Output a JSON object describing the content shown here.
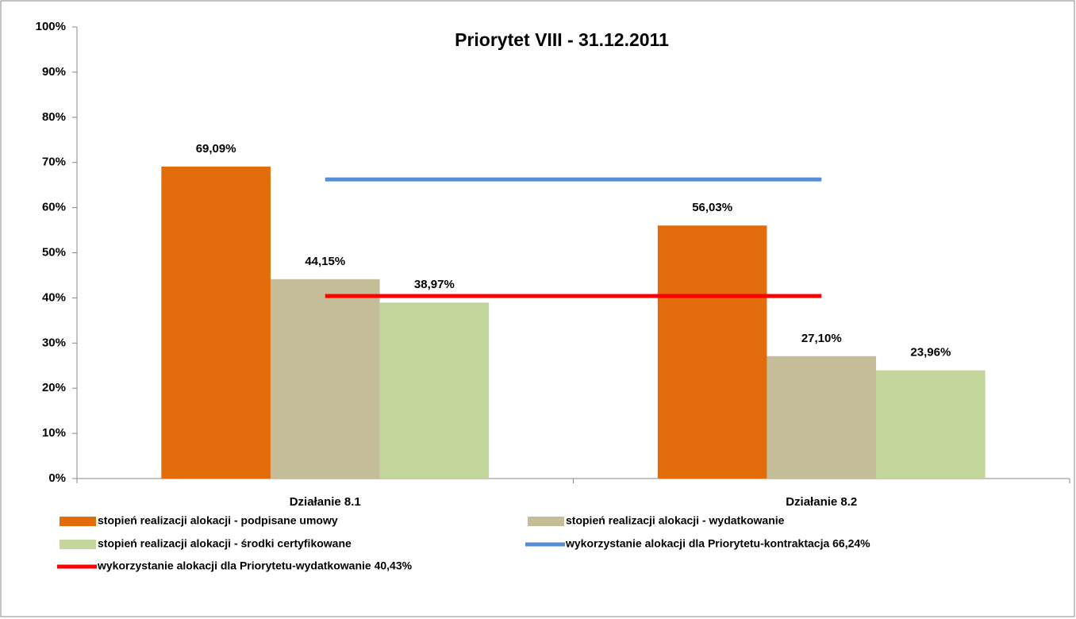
{
  "chart_data": {
    "type": "bar",
    "title": "Priorytet VIII - 31.12.2011",
    "categories": [
      "Działanie  8.1",
      "Działanie  8.2"
    ],
    "series": [
      {
        "name": "stopień realizacji alokacji - podpisane umowy",
        "type": "bar",
        "color": "#e36c0a",
        "values": [
          69.09,
          56.03
        ],
        "value_labels": [
          "69,09%",
          "56,03%"
        ]
      },
      {
        "name": "stopień realizacji alokacji - wydatkowanie",
        "type": "bar",
        "color": "#c4bd97",
        "values": [
          44.15,
          27.1
        ],
        "value_labels": [
          "44,15%",
          "27,10%"
        ]
      },
      {
        "name": "stopień realizacji alokacji - środki certyfikowane",
        "type": "bar",
        "color": "#c3d69b",
        "values": [
          38.97,
          23.96
        ],
        "value_labels": [
          "38,97%",
          "23,96%"
        ]
      },
      {
        "name": "wykorzystanie alokacji dla Priorytetu-kontraktacja  66,24%",
        "type": "line",
        "color": "#558ed5",
        "values": [
          66.24,
          66.24
        ]
      },
      {
        "name": "wykorzystanie alokacji dla Priorytetu-wydatkowanie  40,43%",
        "type": "line",
        "color": "#ff0000",
        "values": [
          40.43,
          40.43
        ]
      }
    ],
    "ylim": [
      0,
      100
    ],
    "yticks": [
      {
        "value": 0,
        "label": "0%"
      },
      {
        "value": 10,
        "label": "10%"
      },
      {
        "value": 20,
        "label": "20%"
      },
      {
        "value": 30,
        "label": "30%"
      },
      {
        "value": 40,
        "label": "40%"
      },
      {
        "value": 50,
        "label": "50%"
      },
      {
        "value": 60,
        "label": "60%"
      },
      {
        "value": 70,
        "label": "70%"
      },
      {
        "value": 80,
        "label": "80%"
      },
      {
        "value": 90,
        "label": "90%"
      },
      {
        "value": 100,
        "label": "100%"
      }
    ],
    "grid": false,
    "legend": "bottom"
  }
}
